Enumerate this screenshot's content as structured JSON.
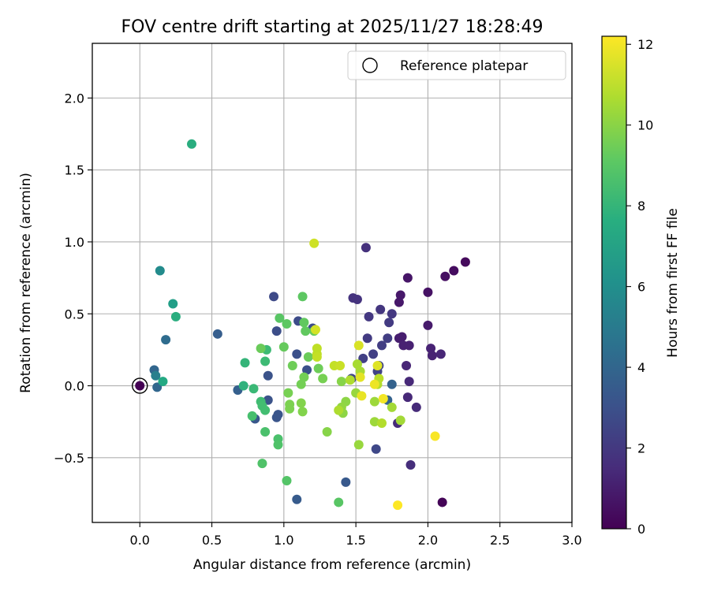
{
  "chart_data": {
    "type": "scatter",
    "title": "FOV centre drift starting at 2025/11/27 18:28:49",
    "xlabel": "Angular distance from reference (arcmin)",
    "ylabel": "Rotation from reference (arcmin)",
    "xlim": [
      -0.33,
      3.0
    ],
    "ylim": [
      -0.95,
      2.38
    ],
    "xticks": [
      "0.0",
      "0.5",
      "1.0",
      "1.5",
      "2.0",
      "2.5",
      "3.0"
    ],
    "xtick_values": [
      0.0,
      0.5,
      1.0,
      1.5,
      2.0,
      2.5,
      3.0
    ],
    "yticks": [
      "−0.5",
      "0.0",
      "0.5",
      "1.0",
      "1.5",
      "2.0"
    ],
    "ytick_values": [
      -0.5,
      0.0,
      0.5,
      1.0,
      1.5,
      2.0
    ],
    "grid": true,
    "legend": {
      "label": "Reference platepar",
      "placement": "top-right"
    },
    "reference_point": {
      "x": 0.0,
      "y": 0.0
    },
    "colorbar": {
      "label": "Hours from first FF file",
      "range": [
        0,
        12.2
      ],
      "ticks": [
        "0",
        "2",
        "4",
        "6",
        "8",
        "10",
        "12"
      ],
      "tick_values": [
        0,
        2,
        4,
        6,
        8,
        10,
        12
      ],
      "colormap": "viridis"
    },
    "points": [
      {
        "x": 0.0,
        "y": 0.0,
        "h": 0.0
      },
      {
        "x": 2.1,
        "y": -0.81,
        "h": 0.1
      },
      {
        "x": 2.26,
        "y": 0.86,
        "h": 0.3
      },
      {
        "x": 2.18,
        "y": 0.8,
        "h": 0.4
      },
      {
        "x": 2.12,
        "y": 0.76,
        "h": 0.5
      },
      {
        "x": 2.0,
        "y": 0.65,
        "h": 0.6
      },
      {
        "x": 1.86,
        "y": 0.75,
        "h": 0.7
      },
      {
        "x": 1.81,
        "y": 0.63,
        "h": 0.8
      },
      {
        "x": 1.8,
        "y": 0.58,
        "h": 0.8
      },
      {
        "x": 2.0,
        "y": 0.42,
        "h": 0.9
      },
      {
        "x": 1.82,
        "y": 0.34,
        "h": 1.0
      },
      {
        "x": 1.8,
        "y": 0.33,
        "h": 1.0
      },
      {
        "x": 1.83,
        "y": 0.28,
        "h": 1.1
      },
      {
        "x": 1.87,
        "y": 0.28,
        "h": 1.1
      },
      {
        "x": 2.02,
        "y": 0.26,
        "h": 1.2
      },
      {
        "x": 2.03,
        "y": 0.21,
        "h": 1.2
      },
      {
        "x": 2.09,
        "y": 0.22,
        "h": 1.3
      },
      {
        "x": 1.85,
        "y": 0.14,
        "h": 1.3
      },
      {
        "x": 1.87,
        "y": 0.03,
        "h": 1.4
      },
      {
        "x": 1.86,
        "y": -0.08,
        "h": 1.4
      },
      {
        "x": 1.92,
        "y": -0.15,
        "h": 1.5
      },
      {
        "x": 1.79,
        "y": -0.26,
        "h": 1.5
      },
      {
        "x": 1.88,
        "y": -0.55,
        "h": 1.6
      },
      {
        "x": 1.57,
        "y": 0.96,
        "h": 1.7
      },
      {
        "x": 1.48,
        "y": 0.61,
        "h": 1.8
      },
      {
        "x": 1.51,
        "y": 0.6,
        "h": 1.8
      },
      {
        "x": 1.67,
        "y": 0.53,
        "h": 1.9
      },
      {
        "x": 1.59,
        "y": 0.48,
        "h": 2.0
      },
      {
        "x": 1.75,
        "y": 0.5,
        "h": 2.0
      },
      {
        "x": 1.73,
        "y": 0.44,
        "h": 2.1
      },
      {
        "x": 1.58,
        "y": 0.33,
        "h": 2.1
      },
      {
        "x": 1.72,
        "y": 0.33,
        "h": 2.2
      },
      {
        "x": 1.68,
        "y": 0.28,
        "h": 2.2
      },
      {
        "x": 1.62,
        "y": 0.22,
        "h": 2.3
      },
      {
        "x": 1.55,
        "y": 0.19,
        "h": 2.3
      },
      {
        "x": 1.66,
        "y": 0.14,
        "h": 2.4
      },
      {
        "x": 1.65,
        "y": 0.1,
        "h": 2.4
      },
      {
        "x": 1.47,
        "y": 0.05,
        "h": 2.5
      },
      {
        "x": 1.64,
        "y": -0.44,
        "h": 2.6
      },
      {
        "x": 0.93,
        "y": 0.62,
        "h": 2.7
      },
      {
        "x": 1.1,
        "y": 0.45,
        "h": 2.8
      },
      {
        "x": 1.2,
        "y": 0.4,
        "h": 2.8
      },
      {
        "x": 0.95,
        "y": 0.38,
        "h": 2.9
      },
      {
        "x": 1.09,
        "y": 0.22,
        "h": 3.0
      },
      {
        "x": 1.16,
        "y": 0.11,
        "h": 3.0
      },
      {
        "x": 0.89,
        "y": 0.07,
        "h": 3.1
      },
      {
        "x": 0.89,
        "y": -0.1,
        "h": 3.1
      },
      {
        "x": 0.96,
        "y": -0.2,
        "h": 3.2
      },
      {
        "x": 0.95,
        "y": -0.22,
        "h": 3.2
      },
      {
        "x": 0.8,
        "y": -0.23,
        "h": 3.3
      },
      {
        "x": 1.43,
        "y": -0.67,
        "h": 3.4
      },
      {
        "x": 1.09,
        "y": -0.79,
        "h": 3.5
      },
      {
        "x": 0.54,
        "y": 0.36,
        "h": 3.6
      },
      {
        "x": 0.68,
        "y": -0.03,
        "h": 3.7
      },
      {
        "x": 1.75,
        "y": 0.01,
        "h": 3.8
      },
      {
        "x": 1.72,
        "y": -0.1,
        "h": 3.8
      },
      {
        "x": 0.1,
        "y": 0.11,
        "h": 4.0
      },
      {
        "x": 0.12,
        "y": -0.01,
        "h": 4.0
      },
      {
        "x": 0.18,
        "y": 0.32,
        "h": 4.3
      },
      {
        "x": 0.11,
        "y": 0.07,
        "h": 5.2
      },
      {
        "x": 0.14,
        "y": 0.8,
        "h": 5.8
      },
      {
        "x": 0.23,
        "y": 0.57,
        "h": 6.8
      },
      {
        "x": 0.16,
        "y": 0.03,
        "h": 7.4
      },
      {
        "x": 0.36,
        "y": 1.68,
        "h": 7.6
      },
      {
        "x": 0.25,
        "y": 0.48,
        "h": 7.6
      },
      {
        "x": 0.72,
        "y": 0.0,
        "h": 7.8
      },
      {
        "x": 0.73,
        "y": 0.16,
        "h": 8.0
      },
      {
        "x": 0.79,
        "y": -0.02,
        "h": 8.2
      },
      {
        "x": 0.88,
        "y": 0.25,
        "h": 8.3
      },
      {
        "x": 0.87,
        "y": 0.17,
        "h": 8.3
      },
      {
        "x": 0.84,
        "y": -0.11,
        "h": 8.4
      },
      {
        "x": 0.85,
        "y": -0.14,
        "h": 8.5
      },
      {
        "x": 0.87,
        "y": -0.17,
        "h": 8.5
      },
      {
        "x": 0.78,
        "y": -0.21,
        "h": 8.6
      },
      {
        "x": 0.87,
        "y": -0.32,
        "h": 8.7
      },
      {
        "x": 0.96,
        "y": -0.37,
        "h": 8.7
      },
      {
        "x": 0.96,
        "y": -0.41,
        "h": 8.8
      },
      {
        "x": 0.85,
        "y": -0.54,
        "h": 8.8
      },
      {
        "x": 1.02,
        "y": -0.66,
        "h": 8.9
      },
      {
        "x": 1.38,
        "y": -0.81,
        "h": 9.0
      },
      {
        "x": 0.97,
        "y": 0.47,
        "h": 9.0
      },
      {
        "x": 1.02,
        "y": 0.43,
        "h": 9.1
      },
      {
        "x": 1.13,
        "y": 0.62,
        "h": 9.1
      },
      {
        "x": 1.14,
        "y": 0.44,
        "h": 9.2
      },
      {
        "x": 1.15,
        "y": 0.38,
        "h": 9.2
      },
      {
        "x": 1.21,
        "y": 0.38,
        "h": 9.3
      },
      {
        "x": 1.0,
        "y": 0.27,
        "h": 9.3
      },
      {
        "x": 0.84,
        "y": 0.26,
        "h": 9.4
      },
      {
        "x": 1.17,
        "y": 0.2,
        "h": 9.4
      },
      {
        "x": 1.24,
        "y": 0.12,
        "h": 9.5
      },
      {
        "x": 1.06,
        "y": 0.14,
        "h": 9.5
      },
      {
        "x": 1.14,
        "y": 0.06,
        "h": 9.6
      },
      {
        "x": 1.12,
        "y": 0.01,
        "h": 9.6
      },
      {
        "x": 1.27,
        "y": 0.05,
        "h": 9.7
      },
      {
        "x": 1.03,
        "y": -0.05,
        "h": 9.7
      },
      {
        "x": 1.04,
        "y": -0.13,
        "h": 9.8
      },
      {
        "x": 1.04,
        "y": -0.16,
        "h": 9.8
      },
      {
        "x": 1.12,
        "y": -0.12,
        "h": 9.9
      },
      {
        "x": 1.13,
        "y": -0.18,
        "h": 9.9
      },
      {
        "x": 1.3,
        "y": -0.32,
        "h": 10.0
      },
      {
        "x": 1.4,
        "y": 0.03,
        "h": 10.0
      },
      {
        "x": 1.43,
        "y": -0.11,
        "h": 10.1
      },
      {
        "x": 1.41,
        "y": -0.19,
        "h": 10.1
      },
      {
        "x": 1.4,
        "y": -0.15,
        "h": 10.2
      },
      {
        "x": 1.5,
        "y": -0.05,
        "h": 10.3
      },
      {
        "x": 1.52,
        "y": -0.41,
        "h": 10.3
      },
      {
        "x": 1.63,
        "y": -0.11,
        "h": 10.4
      },
      {
        "x": 1.63,
        "y": -0.25,
        "h": 10.4
      },
      {
        "x": 1.75,
        "y": -0.15,
        "h": 10.5
      },
      {
        "x": 1.81,
        "y": -0.24,
        "h": 10.5
      },
      {
        "x": 1.51,
        "y": 0.15,
        "h": 10.6
      },
      {
        "x": 1.53,
        "y": 0.1,
        "h": 10.6
      },
      {
        "x": 1.46,
        "y": 0.04,
        "h": 10.7
      },
      {
        "x": 1.38,
        "y": -0.17,
        "h": 10.7
      },
      {
        "x": 1.68,
        "y": -0.26,
        "h": 10.8
      },
      {
        "x": 1.65,
        "y": 0.01,
        "h": 10.8
      },
      {
        "x": 1.66,
        "y": 0.05,
        "h": 10.9
      },
      {
        "x": 1.23,
        "y": 0.26,
        "h": 11.0
      },
      {
        "x": 1.23,
        "y": 0.22,
        "h": 11.0
      },
      {
        "x": 1.23,
        "y": 0.2,
        "h": 11.1
      },
      {
        "x": 1.35,
        "y": 0.14,
        "h": 11.1
      },
      {
        "x": 1.39,
        "y": 0.14,
        "h": 11.2
      },
      {
        "x": 1.21,
        "y": 0.99,
        "h": 11.3
      },
      {
        "x": 1.22,
        "y": 0.39,
        "h": 11.4
      },
      {
        "x": 1.52,
        "y": 0.28,
        "h": 11.5
      },
      {
        "x": 1.65,
        "y": 0.14,
        "h": 11.6
      },
      {
        "x": 1.53,
        "y": 0.06,
        "h": 11.7
      },
      {
        "x": 1.54,
        "y": -0.07,
        "h": 11.8
      },
      {
        "x": 1.63,
        "y": 0.01,
        "h": 11.9
      },
      {
        "x": 1.69,
        "y": -0.09,
        "h": 12.0
      },
      {
        "x": 2.05,
        "y": -0.35,
        "h": 12.1
      },
      {
        "x": 1.79,
        "y": -0.83,
        "h": 12.2
      }
    ]
  }
}
